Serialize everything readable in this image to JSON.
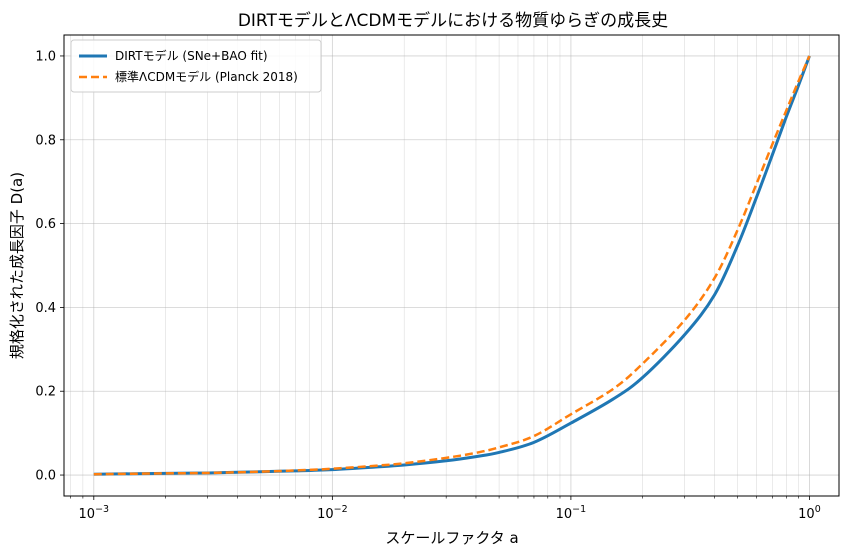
{
  "chart_data": {
    "type": "line",
    "title": "DIRTモデルとΛCDMモデルにおける物質ゆらぎの成長史",
    "xlabel": "スケールファクタ a",
    "ylabel": "規格化された成長因子 D(a)",
    "xscale": "log",
    "xlim": [
      0.00075,
      1.33
    ],
    "ylim": [
      -0.05,
      1.05
    ],
    "x_ticks": [
      0.001,
      0.01,
      0.1,
      1
    ],
    "x_tick_labels": [
      {
        "base": "10",
        "exp": "−3"
      },
      {
        "base": "10",
        "exp": "−2"
      },
      {
        "base": "10",
        "exp": "−1"
      },
      {
        "base": "10",
        "exp": "0"
      }
    ],
    "y_ticks": [
      0.0,
      0.2,
      0.4,
      0.6,
      0.8,
      1.0
    ],
    "y_tick_labels": [
      "0.0",
      "0.2",
      "0.4",
      "0.6",
      "0.8",
      "1.0"
    ],
    "grid": true,
    "legend_position": "top-left",
    "x": [
      0.001,
      0.002,
      0.003,
      0.005,
      0.007,
      0.01,
      0.015,
      0.02,
      0.03,
      0.04,
      0.05,
      0.07,
      0.1,
      0.15,
      0.2,
      0.3,
      0.4,
      0.5,
      0.6,
      0.7,
      0.8,
      0.9,
      1.0
    ],
    "series": [
      {
        "name": "DIRTモデル (SNe+BAO fit)",
        "color": "#1f77b4",
        "style": "solid",
        "values": [
          0.002,
          0.004,
          0.005,
          0.008,
          0.01,
          0.013,
          0.019,
          0.024,
          0.034,
          0.044,
          0.054,
          0.078,
          0.124,
          0.181,
          0.233,
          0.335,
          0.43,
          0.548,
          0.663,
          0.765,
          0.855,
          0.93,
          1.0
        ]
      },
      {
        "name": "標準ΛCDMモデル (Planck 2018)",
        "color": "#ff7f0e",
        "style": "dashed",
        "values": [
          0.002,
          0.004,
          0.005,
          0.008,
          0.011,
          0.015,
          0.022,
          0.028,
          0.041,
          0.053,
          0.066,
          0.093,
          0.145,
          0.205,
          0.266,
          0.37,
          0.47,
          0.585,
          0.695,
          0.79,
          0.87,
          0.94,
          1.0
        ]
      }
    ]
  }
}
